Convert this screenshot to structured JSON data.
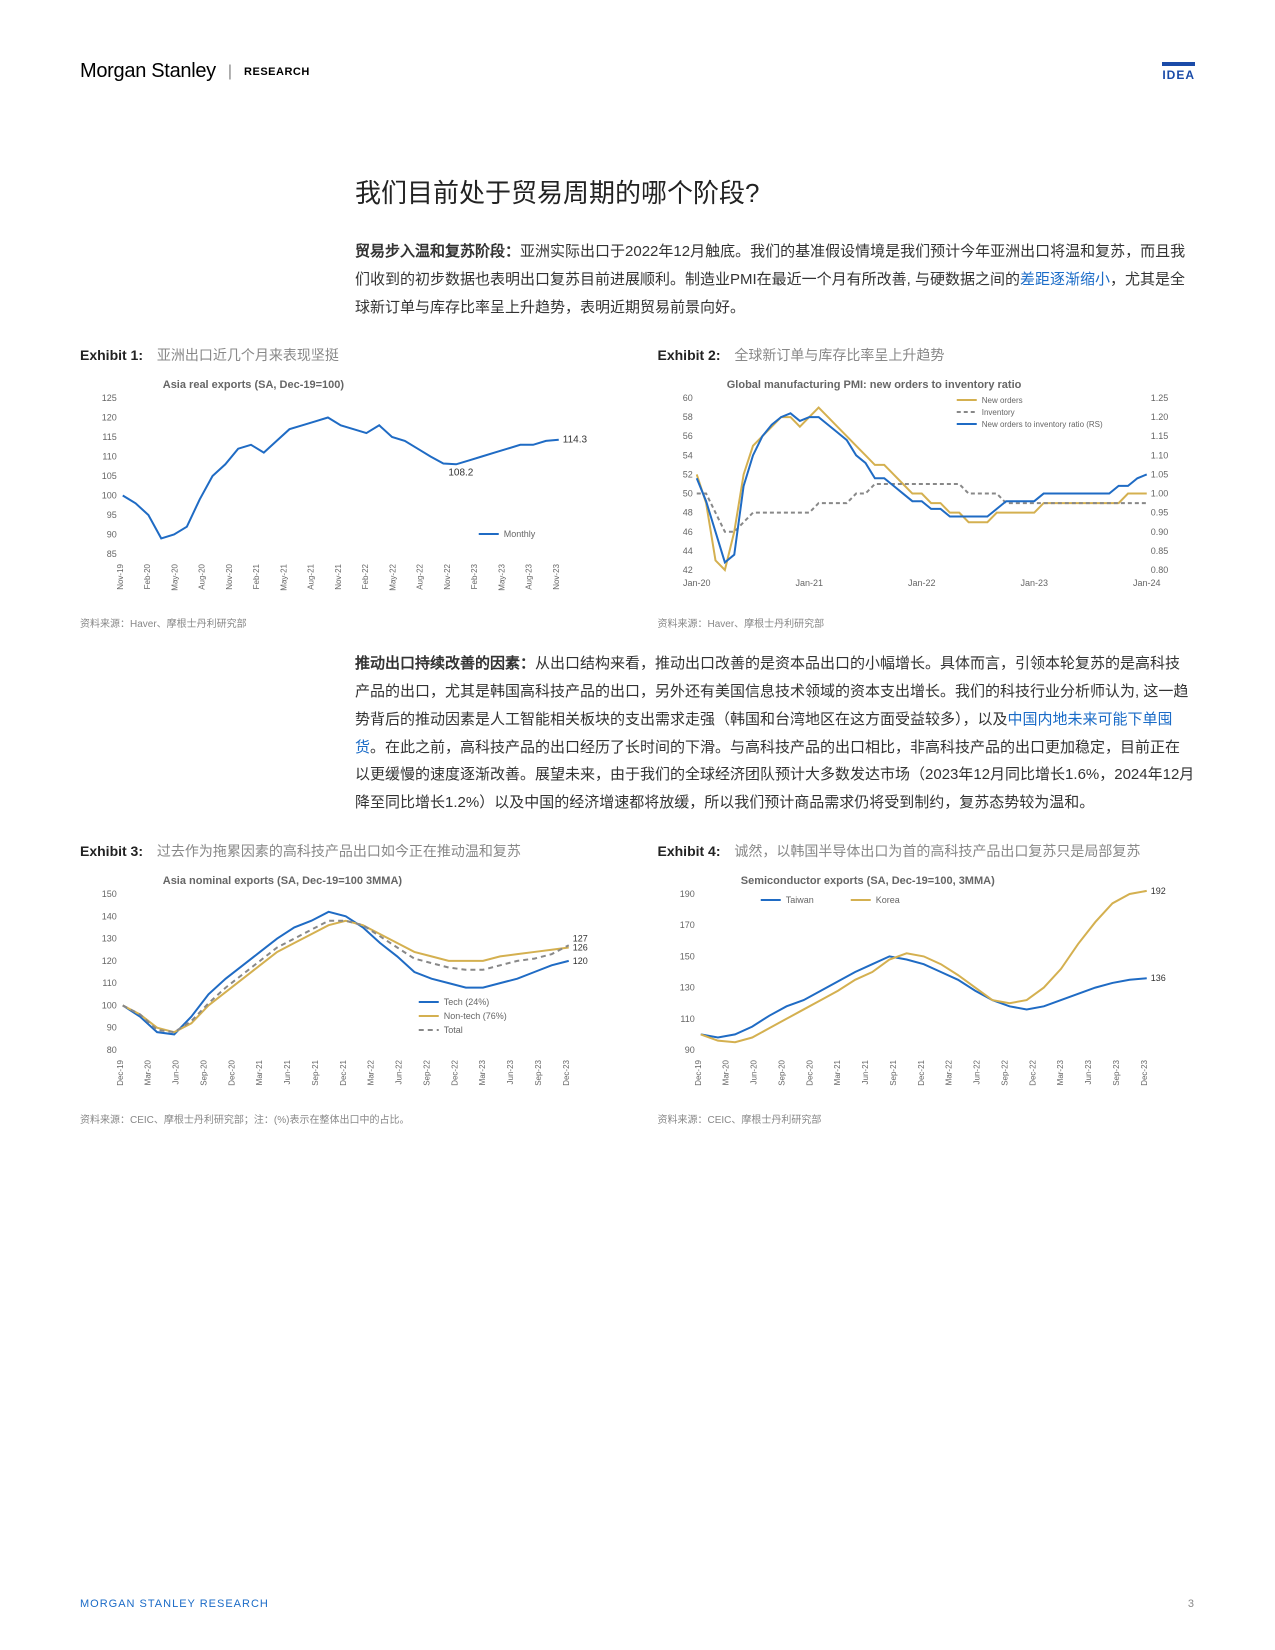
{
  "header": {
    "brand": "Morgan Stanley",
    "division": "RESEARCH",
    "badge": "IDEA"
  },
  "title": "我们目前处于贸易周期的哪个阶段?",
  "para1_bold": "贸易步入温和复苏阶段：",
  "para1_text": "亚洲实际出口于2022年12月触底。我们的基准假设情境是我们预计今年亚洲出口将温和复苏，而且我们收到的初步数据也表明出口复苏目前进展顺利。制造业PMI在最近一个月有所改善, 与硬数据之间的",
  "para1_link": "差距逐渐缩小",
  "para1_text2": "，尤其是全球新订单与库存比率呈上升趋势，表明近期贸易前景向好。",
  "para2_bold": "推动出口持续改善的因素：",
  "para2_text": "从出口结构来看，推动出口改善的是资本品出口的小幅增长。具体而言，引领本轮复苏的是高科技产品的出口，尤其是韩国高科技产品的出口，另外还有美国信息技术领域的资本支出增长。我们的科技行业分析师认为, 这一趋势背后的推动因素是人工智能相关板块的支出需求走强（韩国和台湾地区在这方面受益较多），以及",
  "para2_link": "中国内地未来可能下单囤货",
  "para2_text2": "。在此之前，高科技产品的出口经历了长时间的下滑。与高科技产品的出口相比，非高科技产品的出口更加稳定，目前正在以更缓慢的速度逐渐改善。展望未来，由于我们的全球经济团队预计大多数发达市场（2023年12月同比增长1.6%，2024年12月降至同比增长1.2%）以及中国的经济增速都将放缓，所以我们预计商品需求仍将受到制约，复苏态势较为温和。",
  "exhibit1": {
    "label": "Exhibit 1:",
    "desc": "亚洲出口近几个月来表现坚挺",
    "subtitle": "Asia real exports (SA, Dec-19=100)",
    "ylim": [
      85,
      125
    ],
    "yticks": [
      85,
      90,
      95,
      100,
      105,
      110,
      115,
      120,
      125
    ],
    "xticks": [
      "Nov-19",
      "Feb-20",
      "May-20",
      "Aug-20",
      "Nov-20",
      "Feb-21",
      "May-21",
      "Aug-21",
      "Nov-21",
      "Feb-22",
      "May-22",
      "Aug-22",
      "Nov-22",
      "Feb-23",
      "May-23",
      "Aug-23",
      "Nov-23"
    ],
    "line_color": "#1f6bc4",
    "series": [
      100,
      98,
      95,
      89,
      90,
      92,
      99,
      105,
      108,
      112,
      113,
      111,
      114,
      117,
      118,
      119,
      120,
      118,
      117,
      116,
      118,
      115,
      114,
      112,
      110,
      108.2,
      108,
      109,
      110,
      111,
      112,
      113,
      113,
      114,
      114.3
    ],
    "legend": "Monthly",
    "annot1": "108.2",
    "annot2": "114.3",
    "source": "资料来源：Haver、摩根士丹利研究部"
  },
  "exhibit2": {
    "label": "Exhibit 2:",
    "desc": "全球新订单与库存比率呈上升趋势",
    "subtitle": "Global manufacturing PMI: new orders to inventory ratio",
    "ylim_l": [
      42,
      60
    ],
    "yticks_l": [
      42,
      44,
      46,
      48,
      50,
      52,
      54,
      56,
      58,
      60
    ],
    "ylim_r": [
      0.8,
      1.25
    ],
    "yticks_r": [
      "0.80",
      "0.85",
      "0.90",
      "0.95",
      "1.00",
      "1.05",
      "1.10",
      "1.15",
      "1.20",
      "1.25"
    ],
    "xticks": [
      "Jan-20",
      "Jan-21",
      "Jan-22",
      "Jan-23",
      "Jan-24"
    ],
    "colors": {
      "new_orders": "#d4b050",
      "inventory": "#888888",
      "ratio": "#1f6bc4"
    },
    "legend": {
      "new_orders": "New orders",
      "inventory": "Inventory",
      "ratio": "New orders to inventory ratio (RS)"
    },
    "new_orders": [
      52,
      49,
      43,
      42,
      46,
      52,
      55,
      56,
      57,
      58,
      58,
      57,
      58,
      59,
      58,
      57,
      56,
      55,
      54,
      53,
      53,
      52,
      51,
      50,
      50,
      49,
      49,
      48,
      48,
      47,
      47,
      47,
      48,
      48,
      48,
      48,
      48,
      49,
      49,
      49,
      49,
      49,
      49,
      49,
      49,
      49,
      50,
      50,
      50
    ],
    "inventory": [
      50,
      50,
      48,
      46,
      46,
      47,
      48,
      48,
      48,
      48,
      48,
      48,
      48,
      49,
      49,
      49,
      49,
      50,
      50,
      51,
      51,
      51,
      51,
      51,
      51,
      51,
      51,
      51,
      51,
      50,
      50,
      50,
      50,
      49,
      49,
      49,
      49,
      49,
      49,
      49,
      49,
      49,
      49,
      49,
      49,
      49,
      49,
      49,
      49
    ],
    "ratio": [
      1.04,
      0.98,
      0.9,
      0.82,
      0.84,
      1.02,
      1.1,
      1.15,
      1.18,
      1.2,
      1.21,
      1.19,
      1.2,
      1.2,
      1.18,
      1.16,
      1.14,
      1.1,
      1.08,
      1.04,
      1.04,
      1.02,
      1.0,
      0.98,
      0.98,
      0.96,
      0.96,
      0.94,
      0.94,
      0.94,
      0.94,
      0.94,
      0.96,
      0.98,
      0.98,
      0.98,
      0.98,
      1.0,
      1.0,
      1.0,
      1.0,
      1.0,
      1.0,
      1.0,
      1.0,
      1.02,
      1.02,
      1.04,
      1.05
    ],
    "source": "资料来源：Haver、摩根士丹利研究部"
  },
  "exhibit3": {
    "label": "Exhibit 3:",
    "desc": "过去作为拖累因素的高科技产品出口如今正在推动温和复苏",
    "subtitle": "Asia nominal exports (SA, Dec-19=100 3MMA)",
    "ylim": [
      80,
      150
    ],
    "yticks": [
      80,
      90,
      100,
      110,
      120,
      130,
      140,
      150
    ],
    "xticks": [
      "Dec-19",
      "Mar-20",
      "Jun-20",
      "Sep-20",
      "Dec-20",
      "Mar-21",
      "Jun-21",
      "Sep-21",
      "Dec-21",
      "Mar-22",
      "Jun-22",
      "Sep-22",
      "Dec-22",
      "Mar-23",
      "Jun-23",
      "Sep-23",
      "Dec-23"
    ],
    "colors": {
      "tech": "#1f6bc4",
      "nontech": "#d4b050",
      "total": "#888888"
    },
    "legend": {
      "tech": "Tech (24%)",
      "nontech": "Non-tech (76%)",
      "total": "Total"
    },
    "tech": [
      100,
      95,
      88,
      87,
      95,
      105,
      112,
      118,
      124,
      130,
      135,
      138,
      142,
      140,
      135,
      128,
      122,
      115,
      112,
      110,
      108,
      108,
      110,
      112,
      115,
      118,
      120
    ],
    "nontech": [
      100,
      96,
      90,
      88,
      92,
      100,
      106,
      112,
      118,
      124,
      128,
      132,
      136,
      138,
      136,
      132,
      128,
      124,
      122,
      120,
      120,
      120,
      122,
      123,
      124,
      125,
      126
    ],
    "total": [
      100,
      96,
      89,
      88,
      93,
      101,
      108,
      114,
      120,
      126,
      130,
      134,
      138,
      138,
      136,
      131,
      126,
      121,
      119,
      117,
      116,
      116,
      118,
      120,
      121,
      123,
      127
    ],
    "annot": {
      "tech": "120",
      "nontech": "126",
      "total": "127"
    },
    "source": "资料来源：CEIC、摩根士丹利研究部；注：(%)表示在整体出口中的占比。"
  },
  "exhibit4": {
    "label": "Exhibit 4:",
    "desc": "诚然，以韩国半导体出口为首的高科技产品出口复苏只是局部复苏",
    "subtitle": "Semiconductor exports (SA, Dec-19=100, 3MMA)",
    "ylim": [
      90,
      190
    ],
    "yticks": [
      90,
      110,
      130,
      150,
      170,
      190
    ],
    "xticks": [
      "Dec-19",
      "Mar-20",
      "Jun-20",
      "Sep-20",
      "Dec-20",
      "Mar-21",
      "Jun-21",
      "Sep-21",
      "Dec-21",
      "Mar-22",
      "Jun-22",
      "Sep-22",
      "Dec-22",
      "Mar-23",
      "Jun-23",
      "Sep-23",
      "Dec-23"
    ],
    "colors": {
      "taiwan": "#1f6bc4",
      "korea": "#d4b050"
    },
    "legend": {
      "taiwan": "Taiwan",
      "korea": "Korea"
    },
    "taiwan": [
      100,
      98,
      100,
      105,
      112,
      118,
      122,
      128,
      134,
      140,
      145,
      150,
      148,
      145,
      140,
      135,
      128,
      122,
      118,
      116,
      118,
      122,
      126,
      130,
      133,
      135,
      136
    ],
    "korea": [
      100,
      96,
      95,
      98,
      104,
      110,
      116,
      122,
      128,
      135,
      140,
      148,
      152,
      150,
      145,
      138,
      130,
      122,
      120,
      122,
      130,
      142,
      158,
      172,
      184,
      190,
      192
    ],
    "annot": {
      "taiwan": "136",
      "korea": "192"
    },
    "source": "资料来源：CEIC、摩根士丹利研究部"
  },
  "footer": {
    "left": "MORGAN STANLEY RESEARCH",
    "page": "3"
  }
}
